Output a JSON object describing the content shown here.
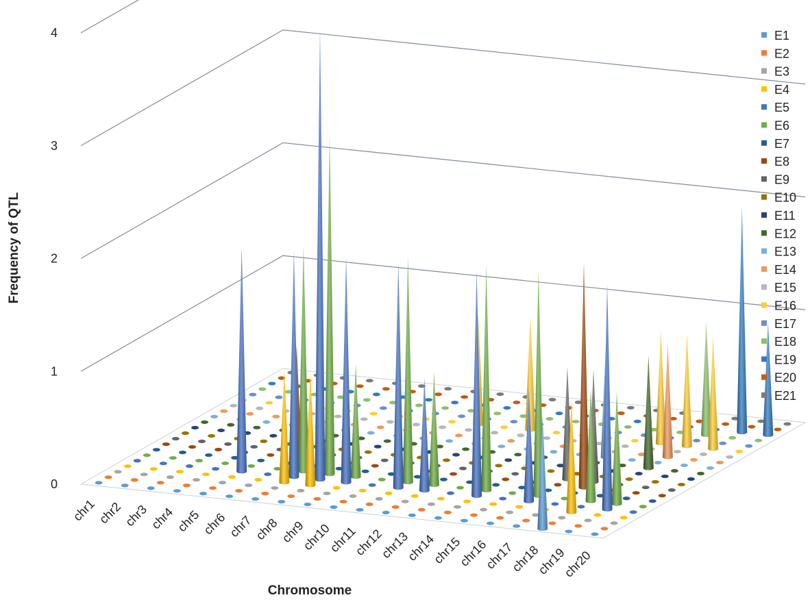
{
  "chart_data": {
    "type": "bar",
    "subtype": "3d-cone",
    "title": "",
    "xlabel": "Chromosome",
    "ylabel": "Frequency of QTL",
    "ylim": [
      0,
      4
    ],
    "y_ticks": [
      "0",
      "1",
      "2",
      "3",
      "4"
    ],
    "grid": true,
    "legend_position": "right",
    "categories": [
      "chr1",
      "chr2",
      "chr3",
      "chr4",
      "chr5",
      "chr6",
      "chr7",
      "chr8",
      "chr9",
      "chr10",
      "chr11",
      "chr12",
      "chr13",
      "chr14",
      "chr15",
      "chr16",
      "chr17",
      "chr18",
      "chr19",
      "chr20"
    ],
    "series": [
      {
        "name": "E1",
        "color": "#5b9bd5",
        "values": [
          0,
          0,
          0,
          0,
          0,
          0,
          0,
          0,
          0,
          0,
          0,
          0,
          0,
          0,
          0,
          0,
          0,
          1,
          0,
          0
        ]
      },
      {
        "name": "E2",
        "color": "#ed7d31",
        "values": [
          0,
          0,
          0,
          0,
          0,
          0,
          0,
          0,
          0,
          0,
          0,
          0,
          0,
          0,
          0,
          0,
          0,
          0,
          0,
          0
        ]
      },
      {
        "name": "E3",
        "color": "#a5a5a5",
        "values": [
          0,
          0,
          0,
          0,
          0,
          0,
          0,
          0,
          0,
          0,
          0,
          0,
          0,
          0,
          0,
          0,
          0,
          0,
          0,
          0
        ]
      },
      {
        "name": "E4",
        "color": "#ffc000",
        "values": [
          0,
          0,
          0,
          0,
          0,
          0,
          1,
          1,
          0,
          0,
          0,
          0,
          0,
          0,
          0,
          0,
          0,
          1,
          0,
          0
        ]
      },
      {
        "name": "E5",
        "color": "#4472c4",
        "values": [
          0,
          0,
          0,
          0,
          2,
          0,
          2,
          4,
          2,
          0,
          2,
          1,
          0,
          2,
          0,
          1,
          0,
          0,
          2,
          0
        ]
      },
      {
        "name": "E6",
        "color": "#70ad47",
        "values": [
          0,
          0,
          0,
          0,
          0,
          0,
          2,
          3,
          1,
          0,
          2,
          1,
          0,
          2,
          0,
          2,
          0,
          1,
          1,
          0
        ]
      },
      {
        "name": "E7",
        "color": "#255e91",
        "values": [
          0,
          0,
          0,
          0,
          0,
          0,
          0,
          0,
          0,
          0,
          0,
          0,
          0,
          0,
          0,
          0,
          0,
          0,
          0,
          0
        ]
      },
      {
        "name": "E8",
        "color": "#9e480e",
        "values": [
          0,
          0,
          0,
          0,
          0,
          1,
          0,
          0,
          0,
          0,
          0,
          0,
          0,
          0,
          0,
          0,
          2,
          0,
          0,
          0
        ]
      },
      {
        "name": "E9",
        "color": "#636363",
        "values": [
          0,
          0,
          0,
          0,
          0,
          0,
          0,
          0,
          0,
          0,
          0,
          0,
          0,
          0,
          0,
          1,
          1,
          0,
          0,
          0
        ]
      },
      {
        "name": "E10",
        "color": "#997300",
        "values": [
          0,
          0,
          0,
          0,
          0,
          0,
          0,
          0,
          0,
          0,
          0,
          0,
          0,
          0,
          0,
          0,
          0,
          0,
          0,
          0
        ]
      },
      {
        "name": "E11",
        "color": "#264478",
        "values": [
          0,
          0,
          0,
          0,
          0,
          0,
          0,
          0,
          0,
          0,
          0,
          0,
          0,
          0,
          0,
          0,
          0,
          0,
          0,
          0
        ]
      },
      {
        "name": "E12",
        "color": "#43682b",
        "values": [
          0,
          0,
          0,
          0,
          0,
          0,
          0,
          0,
          0,
          0,
          0,
          0,
          0,
          0,
          0,
          0,
          0,
          1,
          0,
          0
        ]
      },
      {
        "name": "E13",
        "color": "#7cafdd",
        "values": [
          0,
          0,
          0,
          0,
          0,
          0,
          0,
          0,
          0,
          0,
          0,
          0,
          0,
          0,
          0,
          1,
          0,
          0,
          0,
          0
        ]
      },
      {
        "name": "E14",
        "color": "#f1975a",
        "values": [
          0,
          0,
          0,
          0,
          0,
          0,
          0,
          0,
          0,
          0,
          0,
          0,
          0,
          0,
          0,
          0,
          0,
          1,
          0,
          0
        ]
      },
      {
        "name": "E15",
        "color": "#b7b7b7",
        "values": [
          0,
          0,
          0,
          0,
          0,
          0,
          0,
          0,
          0,
          0,
          0,
          0,
          0,
          0,
          0,
          0,
          0,
          0,
          0,
          0
        ]
      },
      {
        "name": "E16",
        "color": "#ffcd33",
        "values": [
          0,
          0,
          0,
          0,
          0,
          0,
          0,
          0,
          0,
          1,
          0,
          1,
          0,
          0,
          0,
          0,
          1,
          1,
          1,
          0
        ]
      },
      {
        "name": "E17",
        "color": "#698ed0",
        "values": [
          0,
          0,
          0,
          0,
          0,
          0,
          0,
          0,
          0,
          0,
          0,
          0,
          0,
          0,
          0,
          0,
          0,
          0,
          0,
          0
        ]
      },
      {
        "name": "E18",
        "color": "#8cc168",
        "values": [
          0,
          0,
          0,
          0,
          0,
          0,
          0,
          0,
          0,
          0,
          0,
          0,
          0,
          0,
          0,
          0,
          0,
          1,
          0,
          0
        ]
      },
      {
        "name": "E19",
        "color": "#327dc2",
        "values": [
          0,
          0,
          0,
          0,
          0,
          0,
          0,
          0,
          0,
          0,
          0,
          0,
          0,
          0,
          0,
          0,
          0,
          0,
          2,
          1
        ]
      },
      {
        "name": "E20",
        "color": "#c55a11",
        "values": [
          0,
          0,
          0,
          0,
          0,
          0,
          0,
          0,
          0,
          0,
          0,
          0,
          0,
          0,
          0,
          0,
          0,
          0,
          0,
          0
        ]
      },
      {
        "name": "E21",
        "color": "#7b7b7b",
        "values": [
          0,
          0,
          0,
          0,
          0,
          0,
          0,
          0,
          0,
          0,
          0,
          0,
          0,
          0,
          0,
          0,
          0,
          0,
          0,
          0
        ]
      }
    ]
  }
}
